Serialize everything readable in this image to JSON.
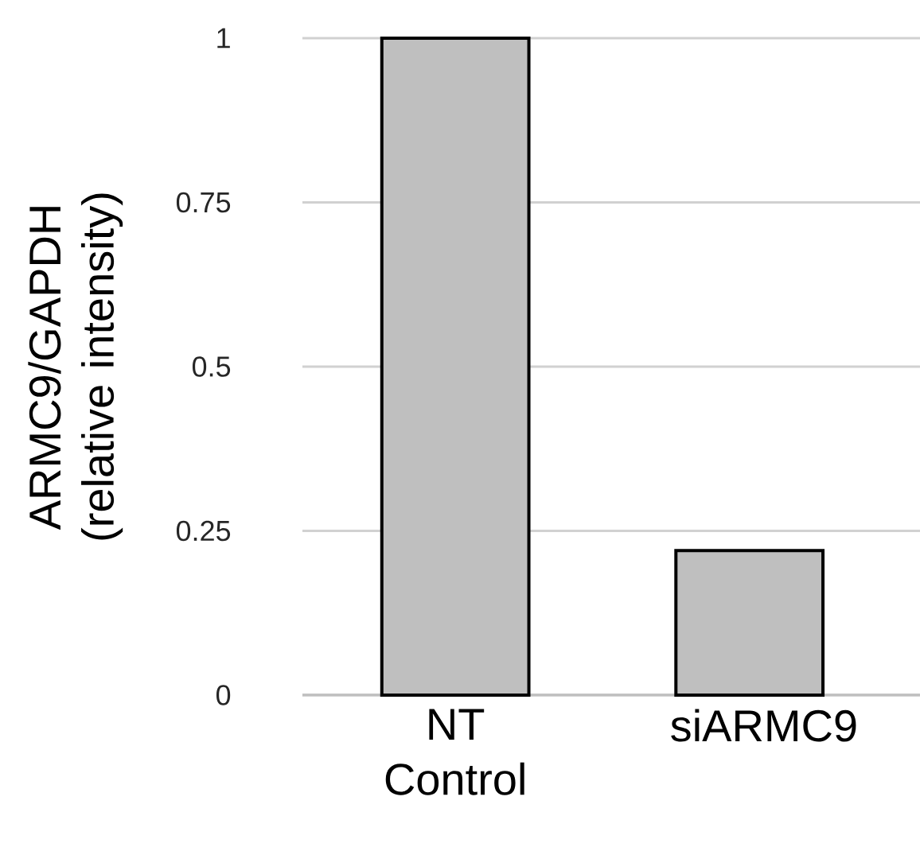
{
  "chart_data": {
    "type": "bar",
    "ylabel": "ARMC9/GAPDH (relative intensity)",
    "categories": [
      "NT Control",
      "siARMC9"
    ],
    "values": [
      1,
      0.22
    ],
    "color": "#bfbfbf",
    "ylim": [
      0,
      1
    ],
    "yticks": [
      0,
      0.25,
      0.5,
      0.75,
      1
    ],
    "grid": "y"
  }
}
